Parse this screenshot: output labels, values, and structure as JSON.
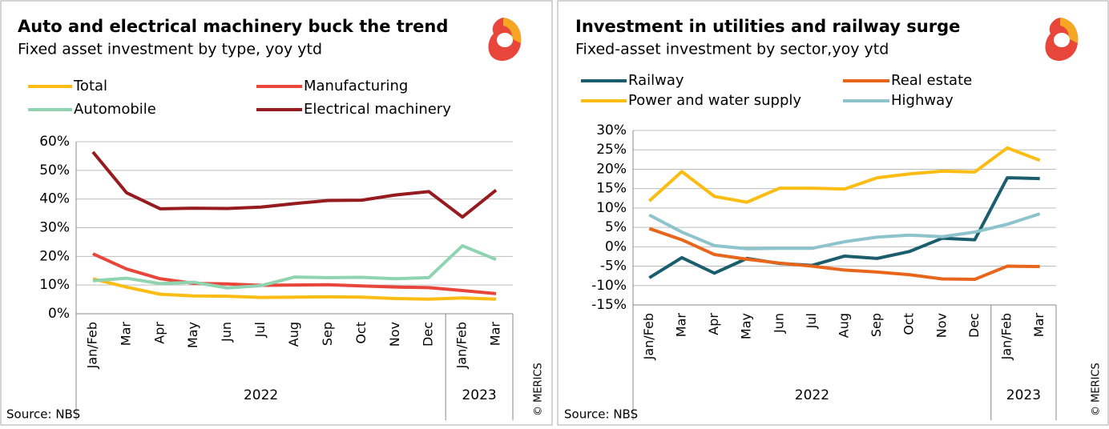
{
  "chart_data": [
    {
      "type": "line",
      "title": "Auto and electrical machinery buck the trend",
      "subtitle": "Fixed asset investment by type, yoy ytd",
      "groups": [
        {
          "label": "2022",
          "categories": [
            "Jan/Feb",
            "Mar",
            "Apr",
            "May",
            "Jun",
            "Jul",
            "Aug",
            "Sep",
            "Oct",
            "Nov",
            "Dec"
          ]
        },
        {
          "label": "2023",
          "categories": [
            "Jan/Feb",
            "Mar"
          ]
        }
      ],
      "series": [
        {
          "name": "Total",
          "color": "#fbbd14",
          "values": [
            12.2,
            9.3,
            6.8,
            6.2,
            6.1,
            5.7,
            5.8,
            5.9,
            5.8,
            5.3,
            5.1,
            5.5,
            5.1
          ]
        },
        {
          "name": "Manufacturing",
          "color": "#e8463a",
          "values": [
            20.9,
            15.6,
            12.2,
            10.6,
            10.4,
            9.9,
            10.0,
            10.1,
            9.7,
            9.3,
            9.1,
            8.1,
            7.0
          ]
        },
        {
          "name": "Automobile",
          "color": "#8fd3b0",
          "values": [
            11.5,
            12.4,
            10.5,
            11.0,
            9.0,
            9.8,
            12.8,
            12.6,
            12.7,
            12.2,
            12.6,
            23.7,
            18.9
          ]
        },
        {
          "name": "Electrical machinery",
          "color": "#961b1e",
          "values": [
            56.4,
            42.2,
            36.6,
            36.8,
            36.7,
            37.2,
            38.4,
            39.5,
            39.6,
            41.4,
            42.6,
            33.7,
            43.1
          ]
        }
      ],
      "ylim": [
        0,
        60
      ],
      "yticks": [
        {
          "value": 0,
          "label": "0%"
        },
        {
          "value": 10,
          "label": "10%"
        },
        {
          "value": 20,
          "label": "20%"
        },
        {
          "value": 30,
          "label": "30%"
        },
        {
          "value": 40,
          "label": "40%"
        },
        {
          "value": 50,
          "label": "50%"
        },
        {
          "value": 60,
          "label": "60%"
        }
      ],
      "grid": true,
      "source": "Source: NBS",
      "credit": "© MERICS"
    },
    {
      "type": "line",
      "title": "Investment in utilities and railway surge",
      "subtitle": "Fixed-asset investment by sector,yoy ytd",
      "groups": [
        {
          "label": "2022",
          "categories": [
            "Jan/Feb",
            "Mar",
            "Apr",
            "May",
            "Jun",
            "Jul",
            "Aug",
            "Sep",
            "Oct",
            "Nov",
            "Dec"
          ]
        },
        {
          "label": "2023",
          "categories": [
            "Jan/Feb",
            "Mar"
          ]
        }
      ],
      "series": [
        {
          "name": "Railway",
          "color": "#1a5e6e",
          "values": [
            -8.0,
            -2.8,
            -6.8,
            -3.0,
            -4.3,
            -4.8,
            -2.4,
            -3.0,
            -1.2,
            2.2,
            1.8,
            17.8,
            17.6
          ]
        },
        {
          "name": "Real estate",
          "color": "#e8661c",
          "values": [
            4.7,
            1.8,
            -2.0,
            -3.2,
            -4.2,
            -5.0,
            -6.0,
            -6.5,
            -7.2,
            -8.3,
            -8.4,
            -5.0,
            -5.1
          ]
        },
        {
          "name": "Power and water supply",
          "color": "#fbbd14",
          "values": [
            11.8,
            19.4,
            13.0,
            11.5,
            15.1,
            15.1,
            14.9,
            17.8,
            18.8,
            19.5,
            19.3,
            25.5,
            22.3
          ]
        },
        {
          "name": "Highway",
          "color": "#8dc3cc",
          "values": [
            8.2,
            3.8,
            0.3,
            -0.5,
            -0.4,
            -0.4,
            1.3,
            2.5,
            3.0,
            2.6,
            3.8,
            5.8,
            8.5
          ]
        }
      ],
      "ylim": [
        -15,
        30
      ],
      "yticks": [
        {
          "value": -15,
          "label": "-15%"
        },
        {
          "value": -10,
          "label": "-10%"
        },
        {
          "value": -5,
          "label": "-5%"
        },
        {
          "value": 0,
          "label": "0%"
        },
        {
          "value": 5,
          "label": "5%"
        },
        {
          "value": 10,
          "label": "10%"
        },
        {
          "value": 15,
          "label": "15%"
        },
        {
          "value": 20,
          "label": "20%"
        },
        {
          "value": 25,
          "label": "25%"
        },
        {
          "value": 30,
          "label": "30%"
        }
      ],
      "grid": true,
      "source": "Source: NBS",
      "credit": "© MERICS"
    }
  ]
}
